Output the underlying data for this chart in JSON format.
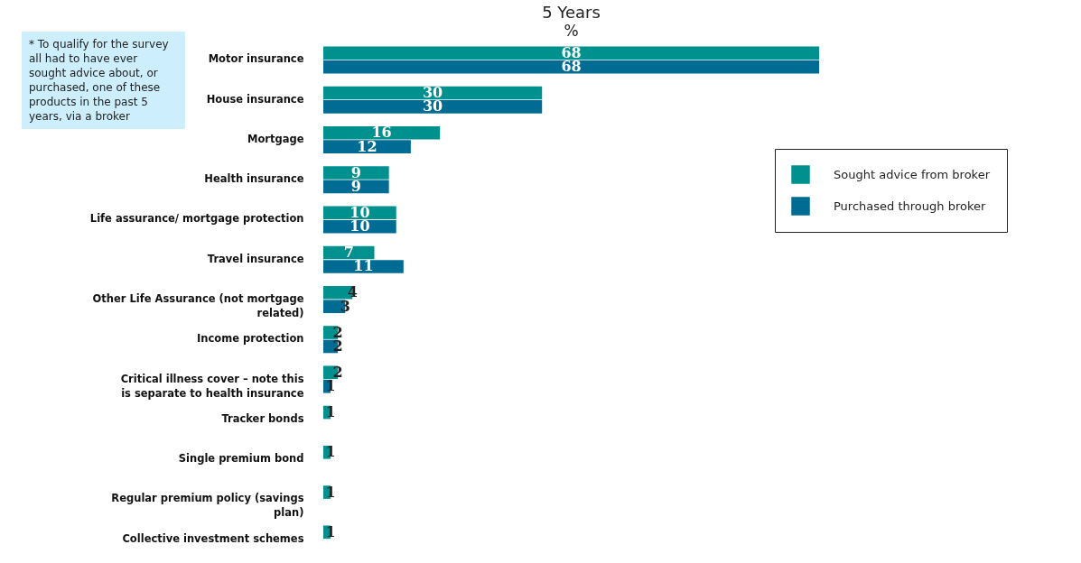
{
  "chart_data": {
    "type": "bar",
    "orientation": "horizontal",
    "title": "5 Years",
    "subtitle": "%",
    "categories": [
      "Motor insurance",
      "House insurance",
      "Mortgage",
      "Health insurance",
      "Life assurance/ mortgage protection",
      "Travel insurance",
      "Other Life Assurance (not mortgage related)",
      "Income protection",
      "Critical illness cover – note this is separate to health insurance",
      "Tracker bonds",
      "Single premium bond",
      "Regular premium policy (savings plan)",
      "Collective investment schemes"
    ],
    "series": [
      {
        "name": "Sought advice from broker",
        "color": "#00918f",
        "values": [
          68,
          30,
          16,
          9,
          10,
          7,
          4,
          2,
          2,
          1,
          1,
          1,
          1
        ]
      },
      {
        "name": "Purchased through broker",
        "color": "#006c93",
        "values": [
          68,
          30,
          12,
          9,
          10,
          11,
          3,
          2,
          1,
          null,
          null,
          null,
          null
        ]
      }
    ],
    "data_labels": true,
    "legend": "right",
    "annotations": [
      "* To qualify for the survey all had to have ever sought advice about, or purchased, one of these products in the past 5 years, via a broker"
    ]
  }
}
